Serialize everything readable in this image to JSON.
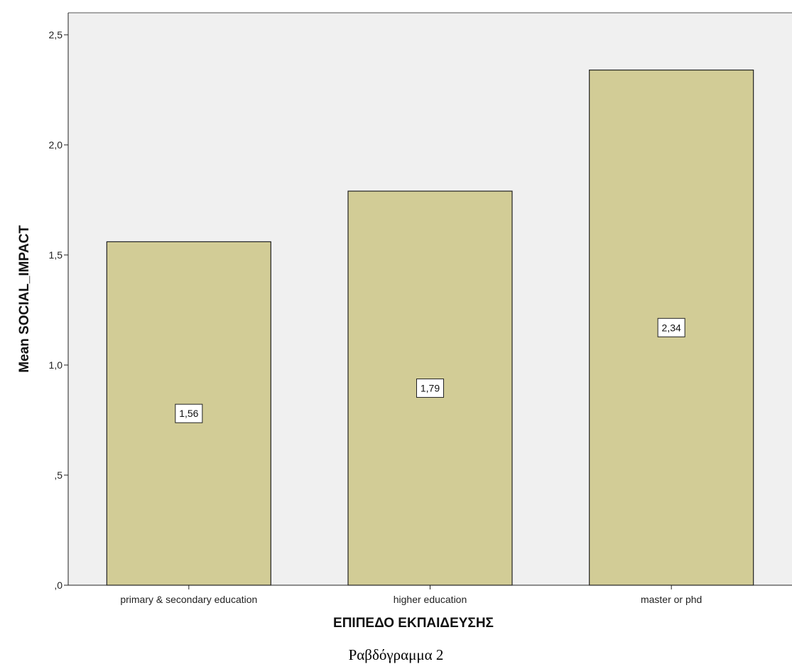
{
  "chart_data": {
    "type": "bar",
    "categories": [
      "primary & secondary education",
      "higher education",
      "master or phd"
    ],
    "values": [
      1.56,
      1.79,
      2.34
    ],
    "data_labels": [
      "1,56",
      "1,79",
      "2,34"
    ],
    "title": "",
    "xlabel": "ΕΠΙΠΕΔΟ ΕΚΠΑΙΔΕΥΣΗΣ",
    "ylabel": "Mean SOCIAL_IMPACT",
    "ylim": [
      0,
      2.6
    ],
    "yticks": [
      0,
      0.5,
      1.0,
      1.5,
      2.0,
      2.5
    ],
    "ytick_labels": [
      ",0",
      ",5",
      "1,0",
      "1,5",
      "2,0",
      "2,5"
    ],
    "grid": false,
    "colors": {
      "bar_fill": "#d2cc96",
      "bar_stroke": "#222222",
      "plot_background": "#f0f0f0"
    }
  },
  "caption": "Ραβδόγραμμα 2"
}
